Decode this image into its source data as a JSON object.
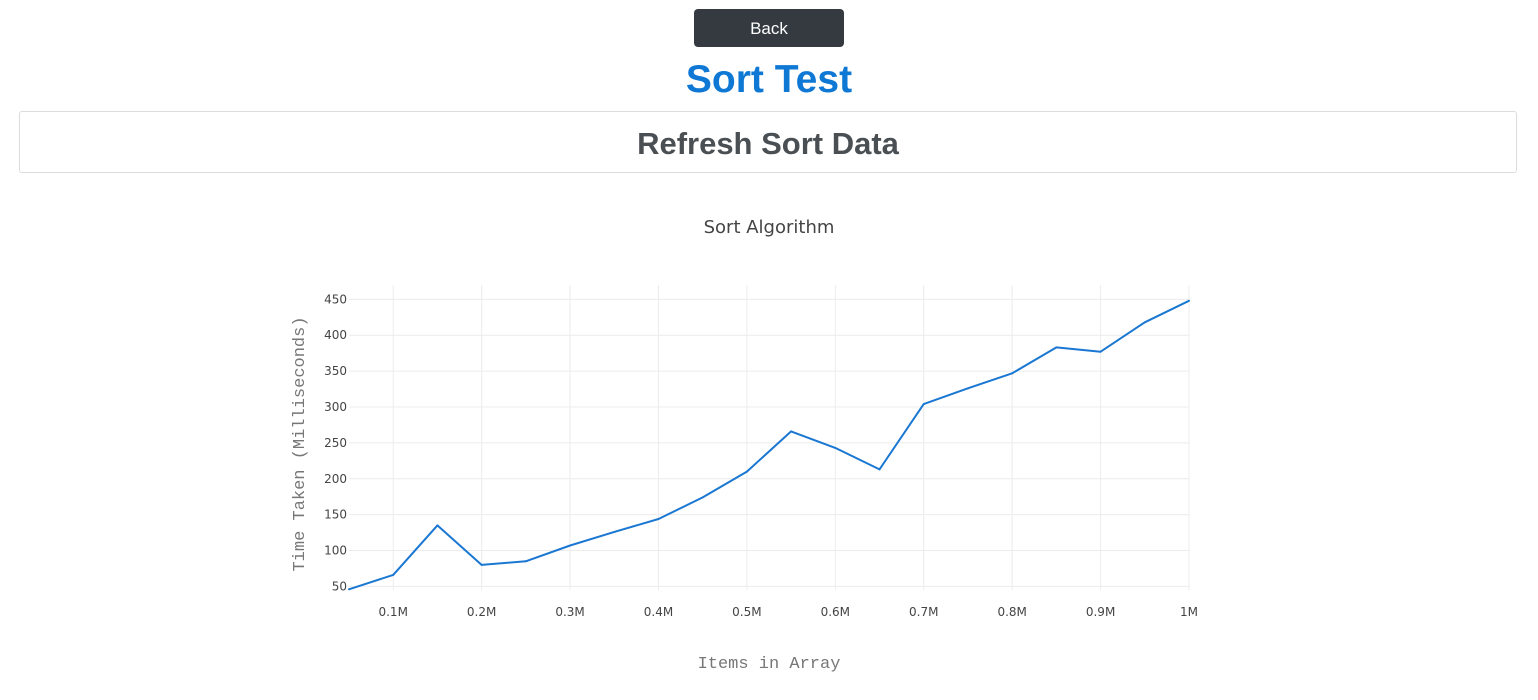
{
  "header": {
    "back_label": "Back",
    "page_title": "Sort Test",
    "refresh_label": "Refresh Sort Data"
  },
  "colors": {
    "accent": "#0f78d4",
    "dark_button": "#343a40",
    "line": "#1a77d2"
  },
  "chart_data": {
    "type": "line",
    "title": "Sort Algorithm",
    "xlabel": "Items in Array",
    "ylabel": "Time Taken (Milliseconds)",
    "grid": true,
    "legend": "none",
    "xlim": [
      50000,
      1000000
    ],
    "ylim": [
      45,
      470
    ],
    "x_ticks": [
      100000,
      200000,
      300000,
      400000,
      500000,
      600000,
      700000,
      800000,
      900000,
      1000000
    ],
    "x_tick_labels": [
      "0.1M",
      "0.2M",
      "0.3M",
      "0.4M",
      "0.5M",
      "0.6M",
      "0.7M",
      "0.8M",
      "0.9M",
      "1M"
    ],
    "y_ticks": [
      50,
      100,
      150,
      200,
      250,
      300,
      350,
      400,
      450
    ],
    "y_tick_labels": [
      "50",
      "100",
      "150",
      "200",
      "250",
      "300",
      "350",
      "400",
      "450"
    ],
    "series": [
      {
        "x": [
          50000,
          100000,
          150000,
          200000,
          250000,
          300000,
          350000,
          400000,
          450000,
          500000,
          550000,
          600000,
          650000,
          700000,
          750000,
          800000,
          850000,
          900000,
          950000,
          1000000
        ],
        "y": [
          46,
          66,
          135,
          80,
          85,
          107,
          126,
          144,
          174,
          210,
          266,
          243,
          213,
          304,
          326,
          347,
          383,
          377,
          418,
          448
        ]
      }
    ]
  }
}
